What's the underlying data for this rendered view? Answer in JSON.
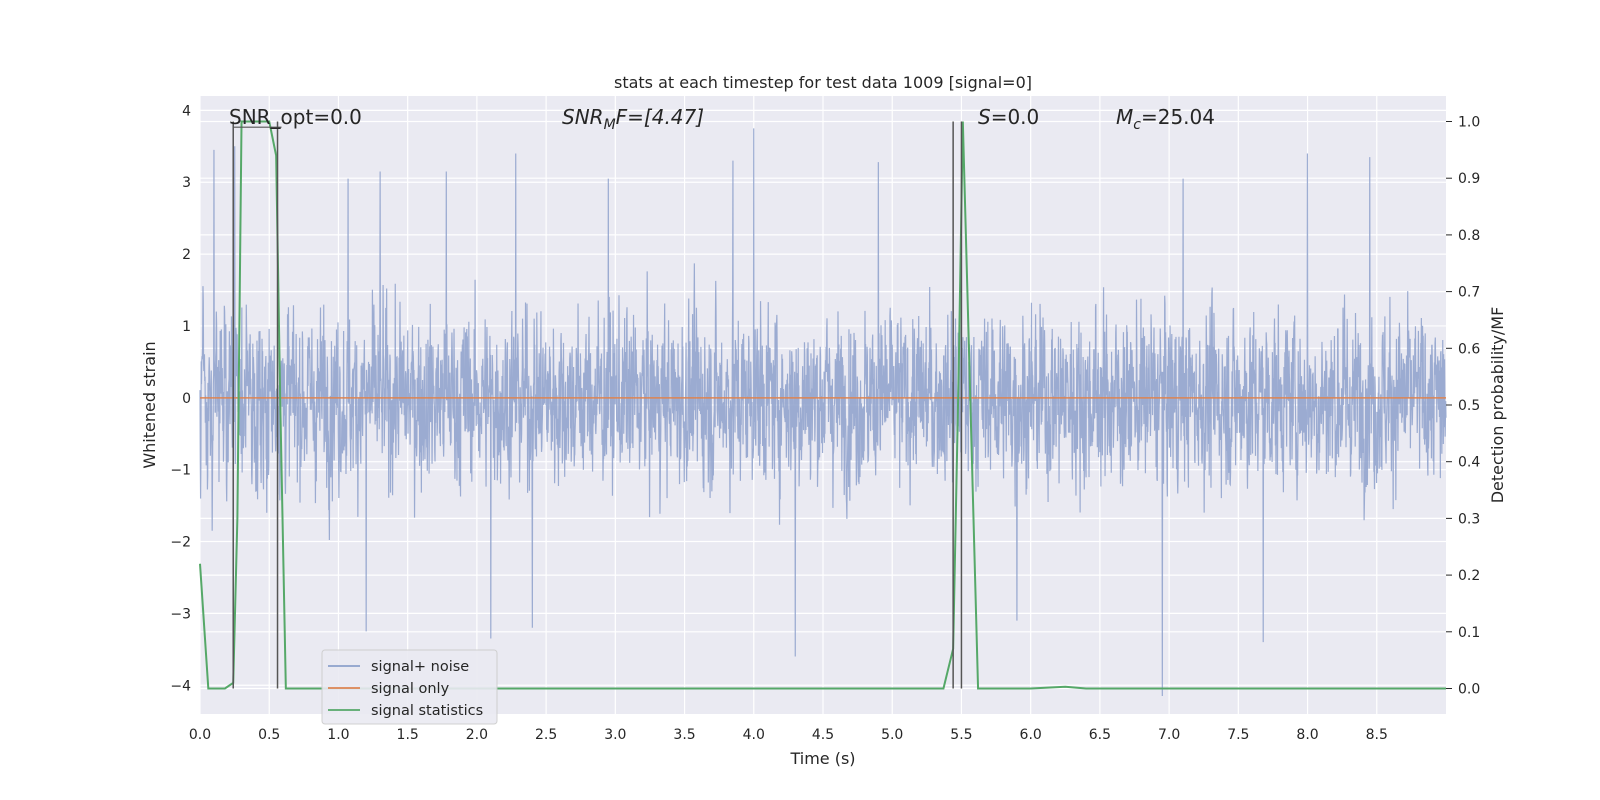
{
  "chart_data": {
    "type": "line",
    "title": "stats at each timestep for test data 1009 [signal=0]",
    "xlabel": "Time (s)",
    "ylabel": "Whitened strain",
    "ylabel_right": "Detection probability/MF",
    "xlim": [
      0.0,
      9.0
    ],
    "ylim": [
      -4.4,
      4.2
    ],
    "ylim_right": [
      -0.045,
      1.045
    ],
    "x_ticks": [
      "0.0",
      "0.5",
      "1.0",
      "1.5",
      "2.0",
      "2.5",
      "3.0",
      "3.5",
      "4.0",
      "4.5",
      "5.0",
      "5.5",
      "6.0",
      "6.5",
      "7.0",
      "7.5",
      "8.0",
      "8.5"
    ],
    "y_ticks": [
      "−4",
      "−3",
      "−2",
      "−1",
      "0",
      "1",
      "2",
      "3",
      "4"
    ],
    "y_ticks_right": [
      "0.0",
      "0.1",
      "0.2",
      "0.3",
      "0.4",
      "0.5",
      "0.6",
      "0.7",
      "0.8",
      "0.9",
      "1.0"
    ],
    "grid": true,
    "legend_position": "lower-left",
    "annotations": {
      "snr_opt": "SNR_opt=0.0",
      "snr_mf_main": "SNR",
      "snr_mf_sub": "M",
      "snr_mf_rest": "F=[4.47]",
      "s_main": "S",
      "s_rest": "=0.0",
      "mc_main": "M",
      "mc_sub": "c",
      "mc_rest": "=25.04"
    },
    "series": [
      {
        "name": "signal+ noise",
        "color": "#8da0cb",
        "description": "dense whitened noise trace",
        "envelope_typical": [
          -2.2,
          2.2
        ],
        "extremes": [
          {
            "x": 0.1,
            "y": 3.45
          },
          {
            "x": 0.25,
            "y": 3.5
          },
          {
            "x": 1.07,
            "y": 3.05
          },
          {
            "x": 1.3,
            "y": 3.15
          },
          {
            "x": 1.78,
            "y": 3.15
          },
          {
            "x": 2.28,
            "y": 3.4
          },
          {
            "x": 2.95,
            "y": 3.05
          },
          {
            "x": 3.85,
            "y": 3.3
          },
          {
            "x": 4.0,
            "y": 3.75
          },
          {
            "x": 4.9,
            "y": 3.28
          },
          {
            "x": 7.1,
            "y": 3.05
          },
          {
            "x": 8.0,
            "y": 3.4
          },
          {
            "x": 8.45,
            "y": 3.35
          },
          {
            "x": 1.2,
            "y": -3.25
          },
          {
            "x": 2.1,
            "y": -3.35
          },
          {
            "x": 2.4,
            "y": -3.2
          },
          {
            "x": 4.3,
            "y": -3.6
          },
          {
            "x": 6.95,
            "y": -4.15
          },
          {
            "x": 7.68,
            "y": -3.4
          },
          {
            "x": 5.9,
            "y": -3.1
          }
        ]
      },
      {
        "name": "signal only",
        "color": "#dd8452",
        "x": [
          0.0,
          9.0
        ],
        "y": [
          0.0,
          0.0
        ]
      },
      {
        "name": "signal statistics",
        "color": "#55a868",
        "axis": "right",
        "x": [
          0.0,
          0.06,
          0.18,
          0.24,
          0.27,
          0.3,
          0.34,
          0.5,
          0.55,
          0.58,
          0.62,
          1.8,
          2.0,
          5.37,
          5.44,
          5.48,
          5.51,
          5.62,
          6.0,
          6.25,
          6.4,
          9.0
        ],
        "y": [
          0.22,
          0.0,
          0.0,
          0.01,
          0.3,
          1.0,
          1.0,
          1.0,
          0.94,
          0.5,
          0.0,
          0.0,
          0.0,
          0.0,
          0.07,
          0.56,
          1.0,
          0.0,
          0.0,
          0.003,
          0.0,
          0.0
        ]
      }
    ],
    "vertical_markers": [
      {
        "x": 0.24,
        "color": "#555555"
      },
      {
        "x": 0.56,
        "color": "#555555"
      },
      {
        "x": 5.44,
        "color": "#555555"
      },
      {
        "x": 5.5,
        "color": "#555555"
      }
    ]
  },
  "colors": {
    "axes_background": "#eaeaf2",
    "grid": "#ffffff",
    "text": "#262626",
    "legend_face": "#eaeaf2",
    "legend_edge": "#cccccc"
  }
}
